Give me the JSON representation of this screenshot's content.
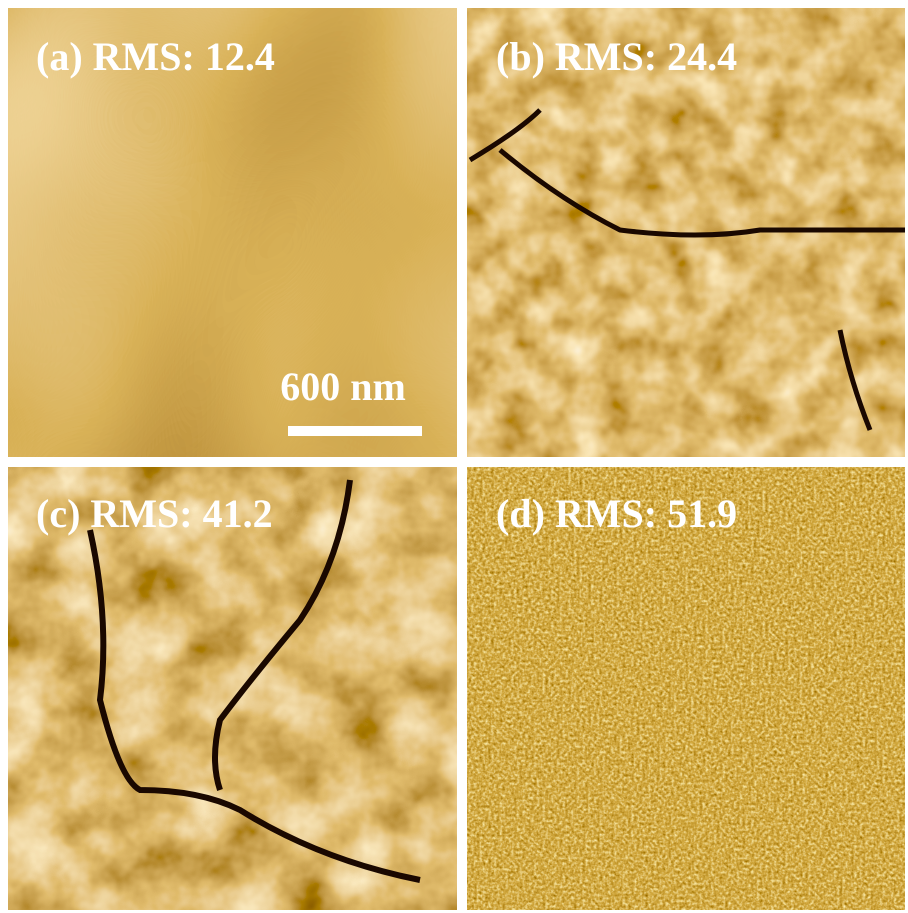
{
  "panels": [
    {
      "label": "(a) RMS: 12.4"
    },
    {
      "label": "(b) RMS: 24.4"
    },
    {
      "label": "(c) RMS: 41.2"
    },
    {
      "label": "(d) RMS: 51.9"
    }
  ],
  "scale_bar": {
    "label": "600 nm"
  }
}
